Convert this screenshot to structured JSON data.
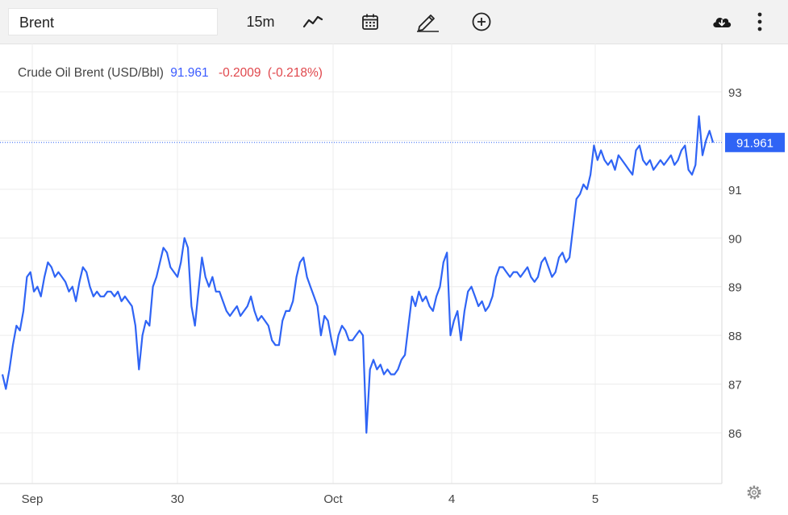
{
  "toolbar": {
    "symbol": "Brent",
    "interval": "15m",
    "icons": [
      "chart-type-icon",
      "calendar-icon",
      "draw-icon",
      "add-indicator-icon",
      "download-icon",
      "more-menu-icon"
    ]
  },
  "legend": {
    "name": "Crude Oil Brent (USD/Bbl)",
    "last": "91.961",
    "change": "-0.2009",
    "change_pct": "(-0.218%)"
  },
  "colors": {
    "line": "#2f64f5",
    "last_badge": "#2f64f5",
    "negative": "#e0474c",
    "grid": "#ececec"
  },
  "chart_data": {
    "type": "line",
    "series": [
      {
        "values": [
          87.2,
          86.9,
          87.3,
          87.8,
          88.2,
          88.1,
          88.5,
          89.2,
          89.3,
          88.9,
          89.0,
          88.8,
          89.2,
          89.5,
          89.4,
          89.2,
          89.3,
          89.2,
          89.1,
          88.9,
          89.0,
          88.7,
          89.1,
          89.4,
          89.3,
          89.0,
          88.8,
          88.9,
          88.8,
          88.8,
          88.9,
          88.9,
          88.8,
          88.9,
          88.7,
          88.8,
          88.7,
          88.6,
          88.2,
          87.3,
          88.0,
          88.3,
          88.2,
          89.0,
          89.2,
          89.5,
          89.8,
          89.7,
          89.4,
          89.3,
          89.2,
          89.5,
          90.0,
          89.8,
          88.6,
          88.2,
          88.9,
          89.6,
          89.2,
          89.0,
          89.2,
          88.9,
          88.9,
          88.7,
          88.5,
          88.4,
          88.5,
          88.6,
          88.4,
          88.5,
          88.6,
          88.8,
          88.5,
          88.3,
          88.4,
          88.3,
          88.2,
          87.9,
          87.8,
          87.8,
          88.3,
          88.5,
          88.5,
          88.7,
          89.2,
          89.5,
          89.6,
          89.2,
          89.0,
          88.8,
          88.6,
          88.0,
          88.4,
          88.3,
          87.9,
          87.6,
          88.0,
          88.2,
          88.1,
          87.9,
          87.9,
          88.0,
          88.1,
          88.0,
          86.0,
          87.3,
          87.5,
          87.3,
          87.4,
          87.2,
          87.3,
          87.2,
          87.2,
          87.3,
          87.5,
          87.6,
          88.2,
          88.8,
          88.6,
          88.9,
          88.7,
          88.8,
          88.6,
          88.5,
          88.8,
          89.0,
          89.5,
          89.7,
          88.0,
          88.3,
          88.5,
          87.9,
          88.5,
          88.9,
          89.0,
          88.8,
          88.6,
          88.7,
          88.5,
          88.6,
          88.8,
          89.2,
          89.4,
          89.4,
          89.3,
          89.2,
          89.3,
          89.3,
          89.2,
          89.3,
          89.4,
          89.2,
          89.1,
          89.2,
          89.5,
          89.6,
          89.4,
          89.2,
          89.3,
          89.6,
          89.7,
          89.5,
          89.6,
          90.2,
          90.8,
          90.9,
          91.1,
          91.0,
          91.3,
          91.9,
          91.6,
          91.8,
          91.6,
          91.5,
          91.6,
          91.4,
          91.7,
          91.6,
          91.5,
          91.4,
          91.3,
          91.8,
          91.9,
          91.6,
          91.5,
          91.6,
          91.4,
          91.5,
          91.6,
          91.5,
          91.6,
          91.7,
          91.5,
          91.6,
          91.8,
          91.9,
          91.4,
          91.3,
          91.5,
          92.5,
          91.7,
          92.0,
          92.2,
          91.961
        ]
      }
    ],
    "ylim": [
      85.0,
      94.0
    ],
    "y_ticks": [
      "86",
      "87",
      "88",
      "89",
      "90",
      "91",
      "93"
    ],
    "x_ticks": [
      "Sep",
      "30",
      "Oct",
      "4",
      "5"
    ],
    "last_value": "91.961",
    "grid": true,
    "legend_position": "top-left"
  }
}
